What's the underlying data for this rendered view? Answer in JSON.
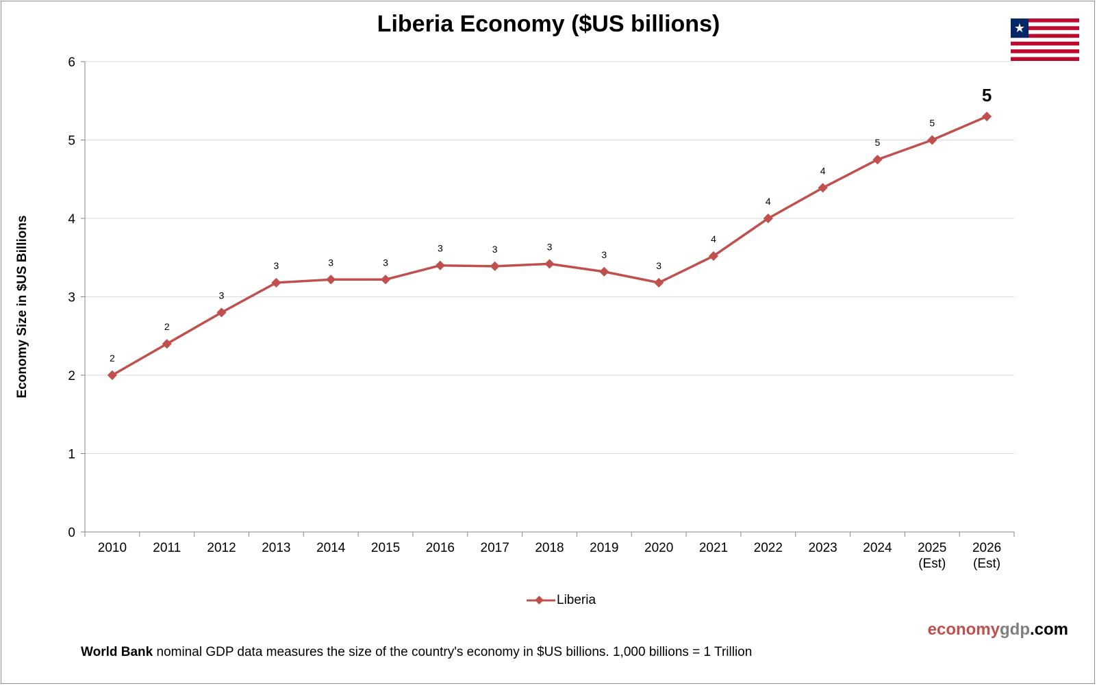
{
  "chart_data": {
    "type": "line",
    "title": "Liberia Economy ($US billions)",
    "ylabel": "Economy Size in $US Billions",
    "xlabel": "",
    "ylim": [
      0,
      6
    ],
    "yticks": [
      "0",
      "1",
      "2",
      "3",
      "4",
      "5",
      "6"
    ],
    "categories": [
      [
        "2010"
      ],
      [
        "2011"
      ],
      [
        "2012"
      ],
      [
        "2013"
      ],
      [
        "2014"
      ],
      [
        "2015"
      ],
      [
        "2016"
      ],
      [
        "2017"
      ],
      [
        "2018"
      ],
      [
        "2019"
      ],
      [
        "2020"
      ],
      [
        "2021"
      ],
      [
        "2022"
      ],
      [
        "2023"
      ],
      [
        "2024"
      ],
      [
        "2025",
        "(Est)"
      ],
      [
        "2026",
        "(Est)"
      ]
    ],
    "series": [
      {
        "name": "Liberia",
        "color": "#c0504d",
        "values": [
          2.0,
          2.4,
          2.8,
          3.18,
          3.22,
          3.22,
          3.4,
          3.39,
          3.42,
          3.32,
          3.18,
          3.52,
          4.0,
          4.39,
          4.75,
          5.0,
          5.3
        ],
        "data_labels": [
          "2",
          "2",
          "3",
          "3",
          "3",
          "3",
          "3",
          "3",
          "3",
          "3",
          "3",
          "4",
          "4",
          "4",
          "5",
          "5",
          "5"
        ]
      }
    ],
    "grid": true,
    "legend": "bottom-center"
  },
  "flag": {
    "name": "liberia-flag-icon",
    "stripe_red": "#bf0a30",
    "canton_blue": "#002868",
    "star": "★"
  },
  "brand": {
    "part1": "economy",
    "part2": "gdp",
    "part3": ".com"
  },
  "footnote": {
    "bold": "World Bank",
    "text": " nominal GDP data  measures the size of the country's economy in $US billions. 1,000 billions = 1 Trillion"
  }
}
